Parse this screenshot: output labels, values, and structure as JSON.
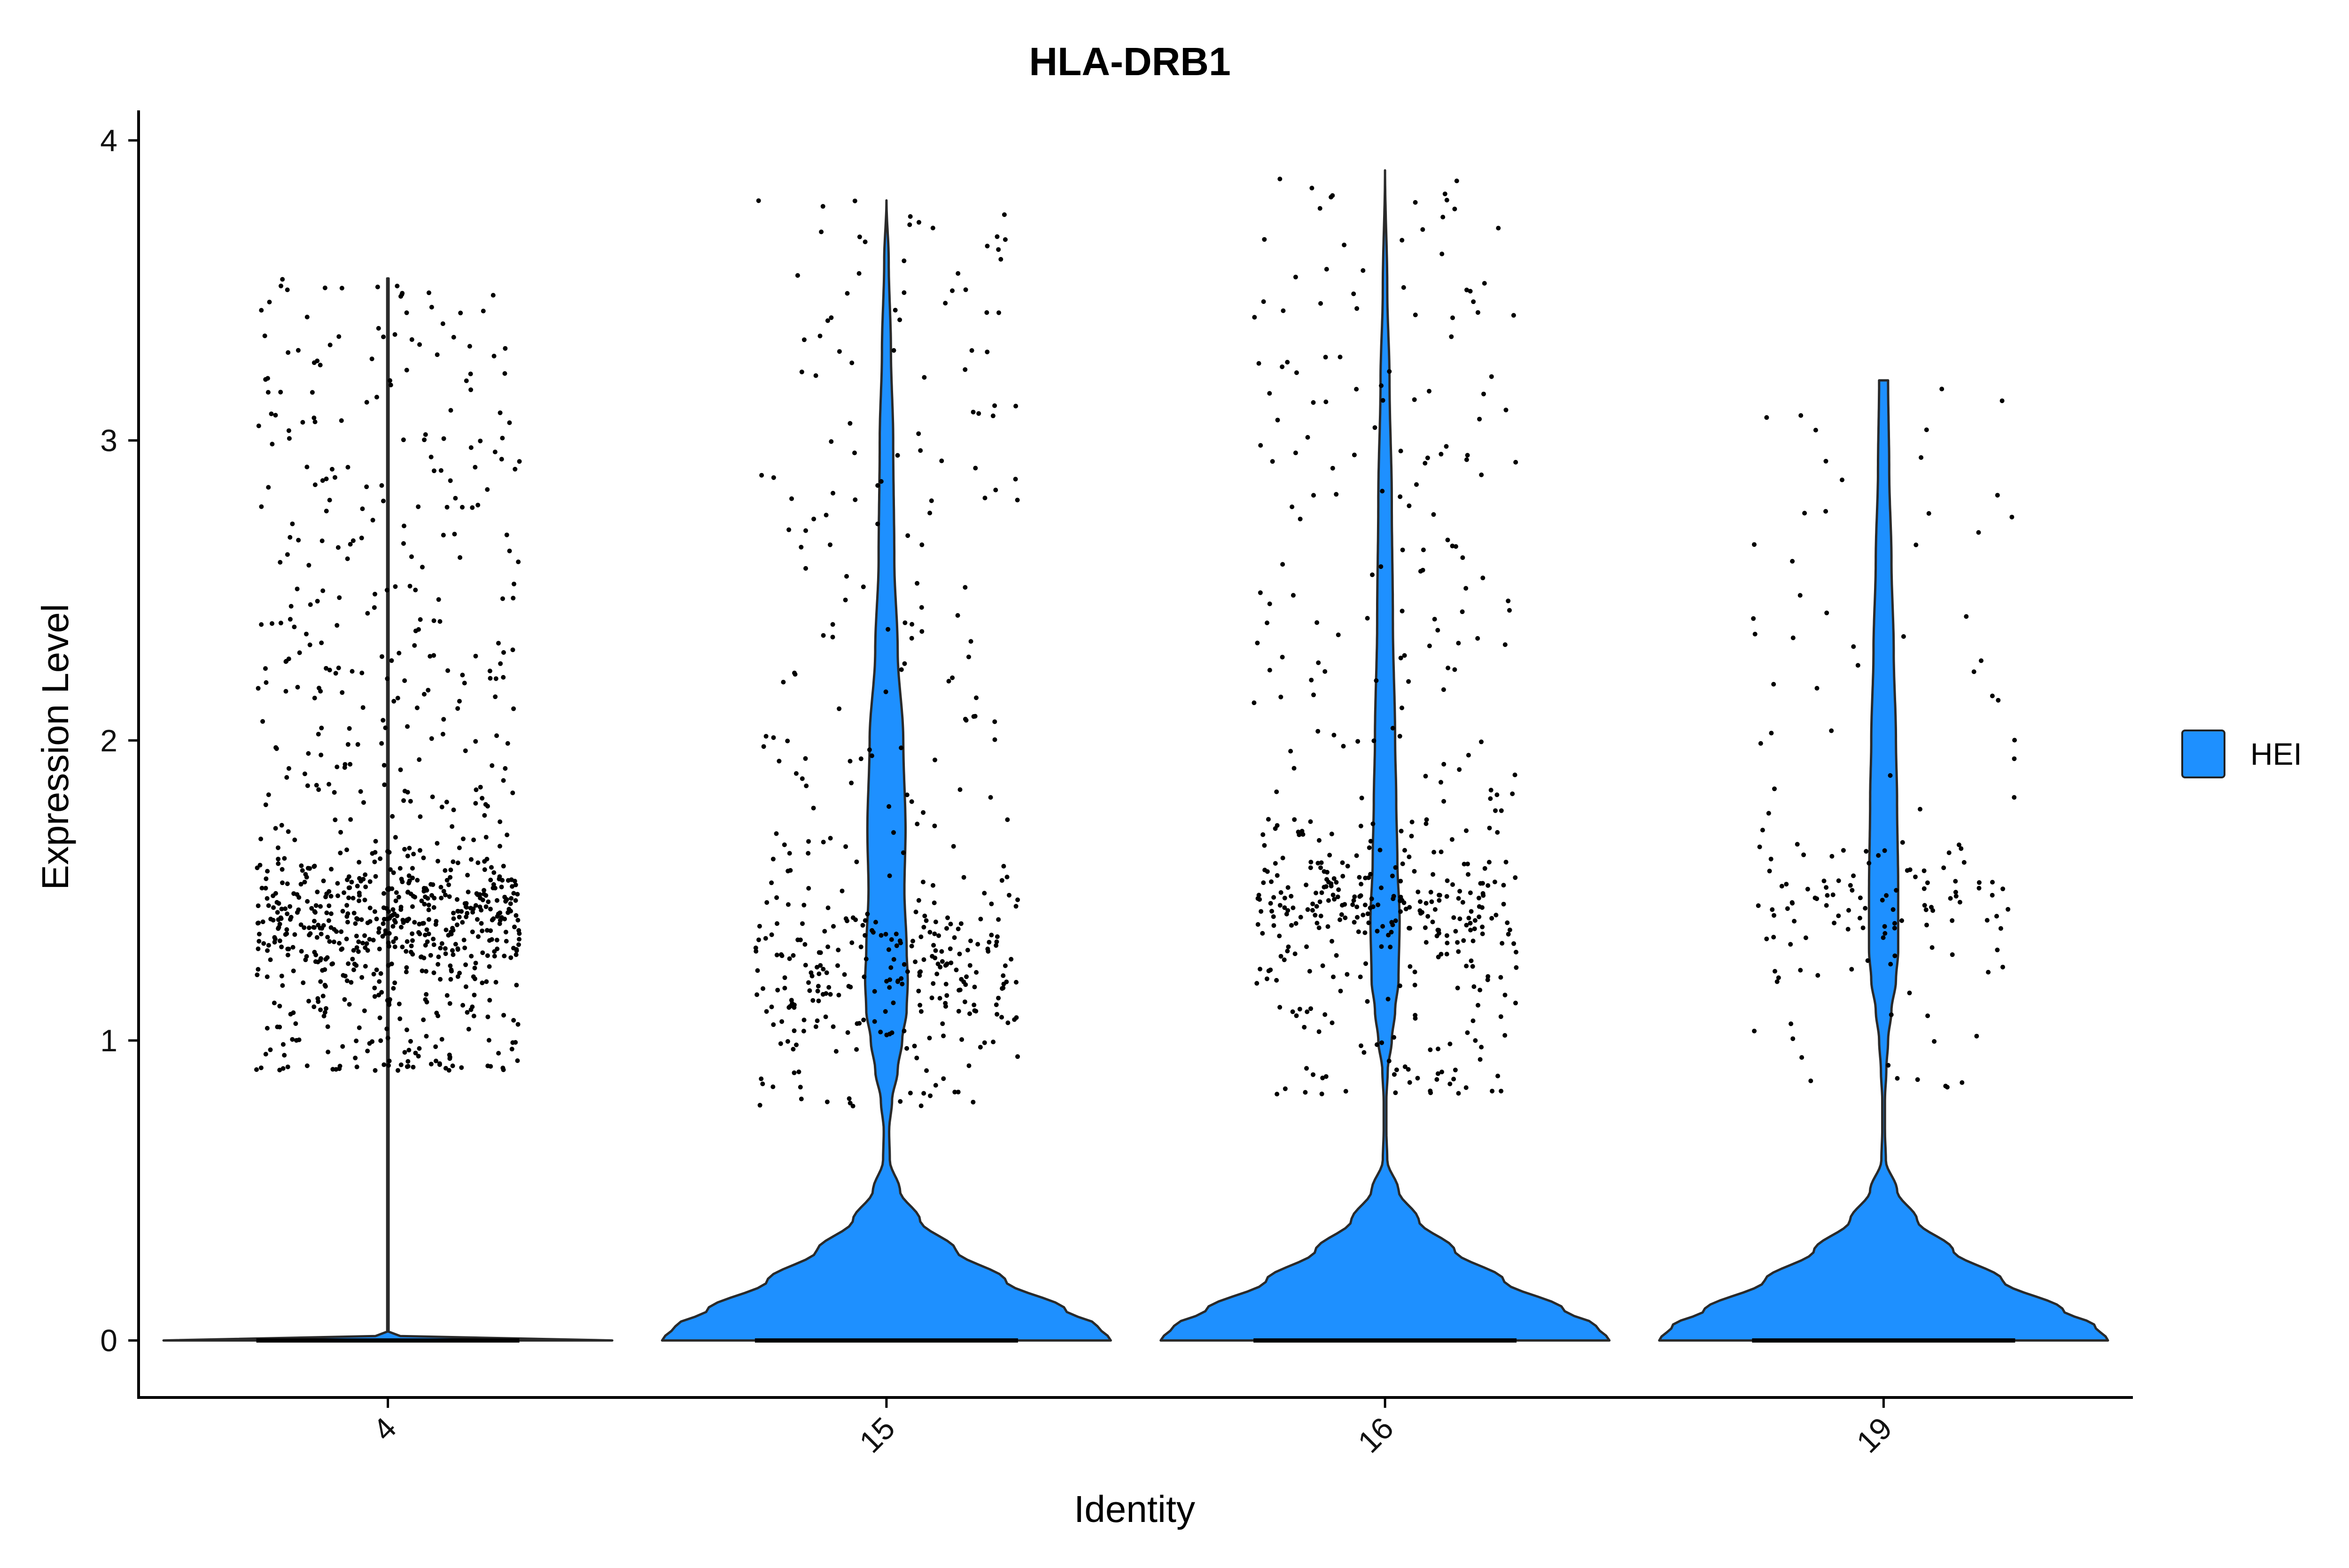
{
  "chart_data": {
    "type": "violin",
    "title": "HLA-DRB1",
    "xlabel": "Identity",
    "ylabel": "Expression Level",
    "categories": [
      "4",
      "15",
      "16",
      "19"
    ],
    "y_ticks": [
      0,
      1,
      2,
      3,
      4
    ],
    "ylim": [
      -0.19,
      4.1
    ],
    "grid": false,
    "legend": {
      "position": "right",
      "entries": [
        {
          "label": "HEI",
          "color": "#1E90FF"
        }
      ]
    },
    "fill_color": "#1E90FF",
    "point_color": "#000000",
    "violins": [
      {
        "category": "4",
        "max": 3.54,
        "points_range": [
          0.9,
          3.55
        ],
        "points_dense_center": 1.4,
        "n_points": 900,
        "profile": [
          [
            0,
            1.0
          ],
          [
            0.01,
            0.1
          ],
          [
            0.02,
            0.003
          ],
          [
            3.54,
            0.003
          ]
        ]
      },
      {
        "category": "15",
        "max": 3.8,
        "points_range": [
          0.78,
          3.8
        ],
        "points_dense_center": 1.25,
        "n_points": 420,
        "profile": [
          [
            0,
            1.0
          ],
          [
            0.05,
            0.94
          ],
          [
            0.1,
            0.8
          ],
          [
            0.2,
            0.53
          ],
          [
            0.3,
            0.31
          ],
          [
            0.4,
            0.15
          ],
          [
            0.5,
            0.06
          ],
          [
            0.6,
            0.015
          ],
          [
            0.7,
            0.012
          ],
          [
            0.8,
            0.025
          ],
          [
            0.9,
            0.05
          ],
          [
            1.0,
            0.07
          ],
          [
            1.1,
            0.09
          ],
          [
            1.2,
            0.095
          ],
          [
            1.3,
            0.09
          ],
          [
            1.5,
            0.08
          ],
          [
            1.7,
            0.085
          ],
          [
            2.0,
            0.075
          ],
          [
            2.3,
            0.05
          ],
          [
            2.6,
            0.035
          ],
          [
            3.0,
            0.03
          ],
          [
            3.3,
            0.02
          ],
          [
            3.6,
            0.01
          ],
          [
            3.8,
            0.0
          ]
        ]
      },
      {
        "category": "16",
        "max": 3.9,
        "points_range": [
          0.82,
          3.9
        ],
        "points_dense_center": 1.45,
        "n_points": 480,
        "profile": [
          [
            0,
            1.0
          ],
          [
            0.05,
            0.94
          ],
          [
            0.1,
            0.8
          ],
          [
            0.2,
            0.53
          ],
          [
            0.3,
            0.31
          ],
          [
            0.4,
            0.15
          ],
          [
            0.5,
            0.06
          ],
          [
            0.6,
            0.01
          ],
          [
            0.7,
            0.006
          ],
          [
            0.8,
            0.006
          ],
          [
            0.9,
            0.012
          ],
          [
            1.0,
            0.03
          ],
          [
            1.1,
            0.045
          ],
          [
            1.2,
            0.06
          ],
          [
            1.4,
            0.065
          ],
          [
            1.6,
            0.055
          ],
          [
            1.8,
            0.05
          ],
          [
            2.0,
            0.045
          ],
          [
            2.4,
            0.035
          ],
          [
            2.8,
            0.03
          ],
          [
            3.2,
            0.02
          ],
          [
            3.5,
            0.01
          ],
          [
            3.9,
            0.0
          ]
        ]
      },
      {
        "category": "19",
        "max": 3.2,
        "points_range": [
          0.83,
          3.2
        ],
        "points_dense_center": 1.45,
        "n_points": 160,
        "profile": [
          [
            0,
            1.0
          ],
          [
            0.05,
            0.94
          ],
          [
            0.1,
            0.8
          ],
          [
            0.2,
            0.53
          ],
          [
            0.3,
            0.31
          ],
          [
            0.4,
            0.15
          ],
          [
            0.5,
            0.06
          ],
          [
            0.6,
            0.01
          ],
          [
            0.7,
            0.006
          ],
          [
            0.8,
            0.006
          ],
          [
            0.9,
            0.012
          ],
          [
            1.0,
            0.02
          ],
          [
            1.1,
            0.035
          ],
          [
            1.2,
            0.055
          ],
          [
            1.3,
            0.065
          ],
          [
            1.5,
            0.065
          ],
          [
            1.8,
            0.06
          ],
          [
            2.0,
            0.055
          ],
          [
            2.3,
            0.045
          ],
          [
            2.6,
            0.035
          ],
          [
            2.9,
            0.025
          ],
          [
            3.2,
            0.02
          ]
        ]
      }
    ]
  }
}
